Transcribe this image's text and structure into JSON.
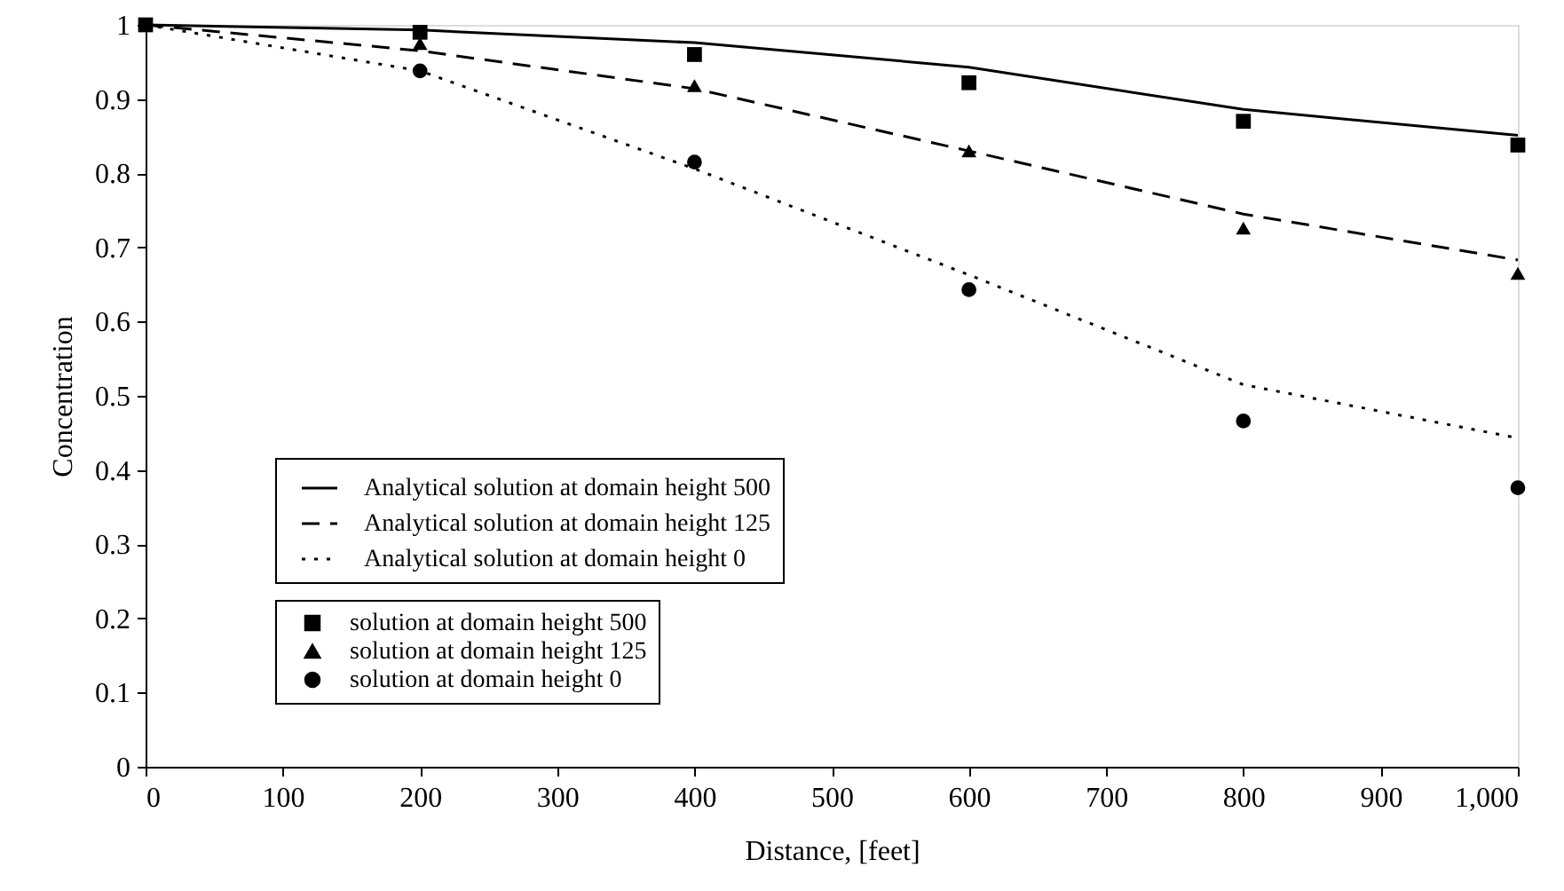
{
  "chart_data": {
    "type": "line",
    "xlabel": "Distance, [feet]",
    "ylabel": "Concentration",
    "x": [
      0,
      200,
      400,
      600,
      800,
      1000
    ],
    "xlim": [
      0,
      1000
    ],
    "xticks": [
      0,
      100,
      200,
      300,
      400,
      500,
      600,
      700,
      800,
      900,
      {
        "value": 1000,
        "label": "1,000"
      }
    ],
    "ylim": [
      0,
      1
    ],
    "yticks": [
      {
        "value": 0,
        "label": "0"
      },
      0.1,
      0.2,
      0.3,
      0.4,
      0.5,
      0.6,
      0.7,
      0.8,
      0.9,
      {
        "value": 1,
        "label": "1"
      }
    ],
    "grid": false,
    "legend": "left",
    "series": [
      {
        "name": "Analytical solution at domain height 500",
        "line_style": "solid",
        "color": "#000000",
        "values": [
          1.0,
          0.993,
          0.976,
          0.943,
          0.886,
          0.851
        ]
      },
      {
        "name": "Analytical solution at domain height 125",
        "line_style": "dashed",
        "color": "#000000",
        "values": [
          1.0,
          0.965,
          0.914,
          0.83,
          0.745,
          0.683
        ]
      },
      {
        "name": "Analytical solution at domain height 0",
        "line_style": "dotted",
        "color": "#000000",
        "values": [
          1.0,
          0.938,
          0.806,
          0.663,
          0.515,
          0.443
        ]
      },
      {
        "name": "solution at domain height 500",
        "type": "scatter",
        "marker": "square",
        "color": "#000000",
        "values": [
          1.0,
          0.99,
          0.96,
          0.922,
          0.87,
          0.838
        ]
      },
      {
        "name": "solution at domain height 125",
        "type": "scatter",
        "marker": "triangle",
        "color": "#000000",
        "values": [
          null,
          0.975,
          0.918,
          0.83,
          0.726,
          0.665
        ]
      },
      {
        "name": "solution at domain height 0",
        "type": "scatter",
        "marker": "circle",
        "color": "#000000",
        "values": [
          null,
          0.938,
          0.815,
          0.643,
          0.466,
          0.376
        ]
      }
    ]
  }
}
